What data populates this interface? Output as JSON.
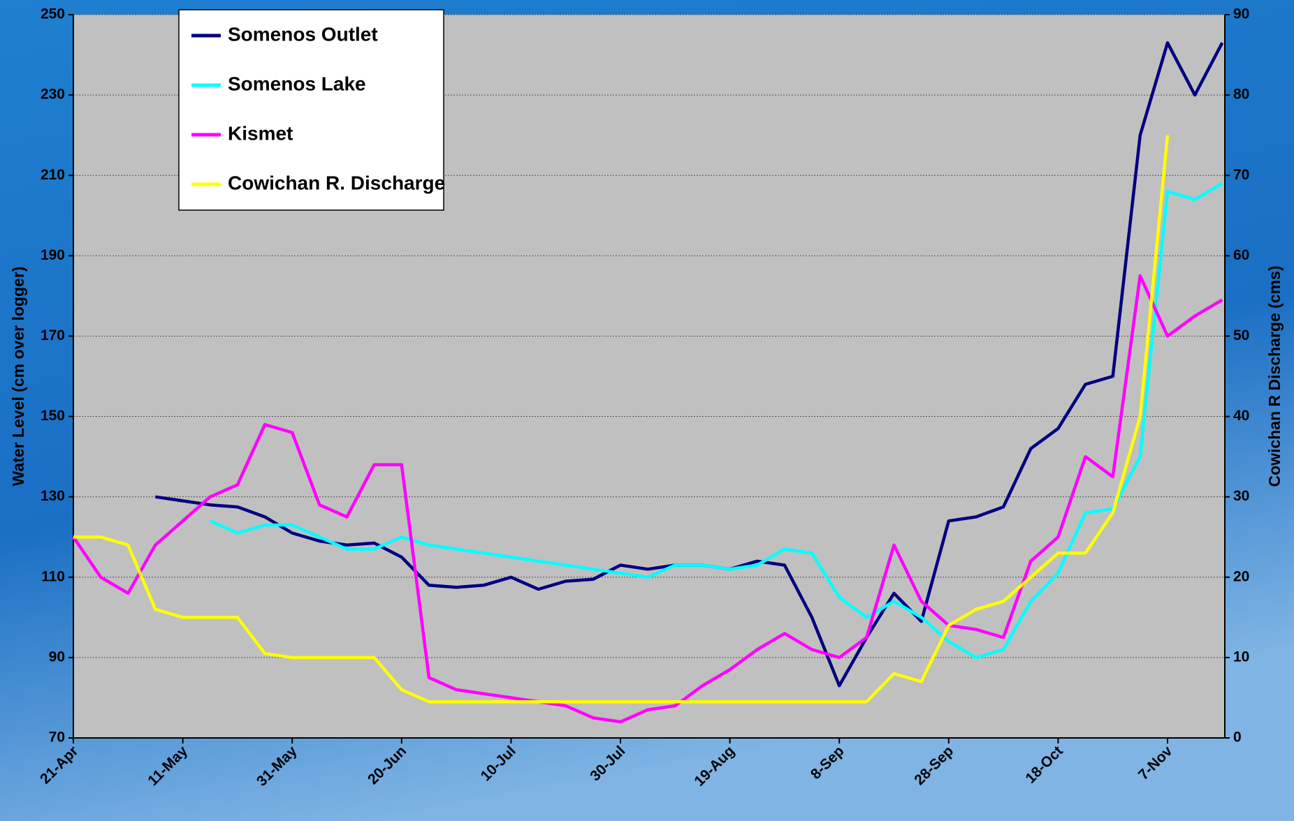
{
  "chart_data": {
    "type": "line",
    "y_label": "Water Level (cm over logger)",
    "y2_label": "Cowichan R Discharge (cms)",
    "categories": [
      "21-Apr",
      null,
      null,
      null,
      "11-May",
      null,
      null,
      null,
      "31-May",
      null,
      null,
      null,
      "20-Jun",
      null,
      null,
      null,
      "10-Jul",
      null,
      null,
      null,
      "30-Jul",
      null,
      null,
      null,
      "19-Aug",
      null,
      null,
      null,
      "8-Sep",
      null,
      null,
      null,
      "28-Sep",
      null,
      null,
      null,
      "18-Oct",
      null,
      null,
      null,
      "7-Nov",
      null,
      null
    ],
    "series": [
      {
        "name": "Somenos Outlet",
        "color": "#000080",
        "values": [
          null,
          null,
          null,
          130,
          129,
          128,
          127.5,
          125,
          121,
          119,
          118,
          118.5,
          115,
          108,
          107.5,
          108,
          110,
          107,
          109,
          109.5,
          113,
          112,
          113,
          113,
          112,
          114,
          113,
          100,
          83,
          95,
          106,
          99,
          124,
          125,
          127.5,
          142,
          147,
          158,
          160,
          220,
          243,
          230,
          243
        ]
      },
      {
        "name": "Somenos Lake",
        "color": "#00ffff",
        "values": [
          null,
          null,
          null,
          null,
          null,
          124,
          121,
          123,
          123,
          120,
          117,
          117,
          120,
          118,
          117,
          116,
          115,
          114,
          113,
          112,
          111,
          110,
          113,
          113,
          112,
          113,
          117,
          116,
          105,
          100,
          104,
          100,
          94,
          90,
          92,
          104,
          111,
          126,
          127,
          140,
          206,
          204,
          208
        ]
      },
      {
        "name": "Kismet",
        "color": "#ff00ff",
        "values": [
          120,
          110,
          106,
          118,
          124,
          130,
          133,
          148,
          146,
          128,
          125,
          138,
          138,
          85,
          82,
          81,
          80,
          79,
          78,
          75,
          74,
          77,
          78,
          83,
          87,
          92,
          96,
          92,
          90,
          95,
          118,
          104,
          98,
          97,
          95,
          114,
          120,
          140,
          135,
          185,
          170,
          175,
          179
        ]
      },
      {
        "name": "Cowichan R. Discharge",
        "color": "#ffff00",
        "axis": "y2",
        "values": [
          25,
          25,
          24,
          16,
          15,
          15,
          15,
          10.5,
          10,
          10,
          10,
          10,
          6,
          4.5,
          4.5,
          4.5,
          4.5,
          4.5,
          4.5,
          4.5,
          4.5,
          4.5,
          4.5,
          4.5,
          4.5,
          4.5,
          4.5,
          4.5,
          4.5,
          4.5,
          8,
          7,
          14,
          16,
          17,
          20,
          23,
          23,
          28,
          40,
          75,
          null,
          null
        ]
      }
    ],
    "ylim": [
      70,
      250
    ],
    "yticks": [
      70,
      90,
      110,
      130,
      150,
      170,
      190,
      210,
      230,
      250
    ],
    "y2lim": [
      0,
      90
    ],
    "y2ticks": [
      0,
      10,
      20,
      30,
      40,
      50,
      60,
      70,
      80,
      90
    ],
    "grid": true,
    "legend": "upper left"
  }
}
